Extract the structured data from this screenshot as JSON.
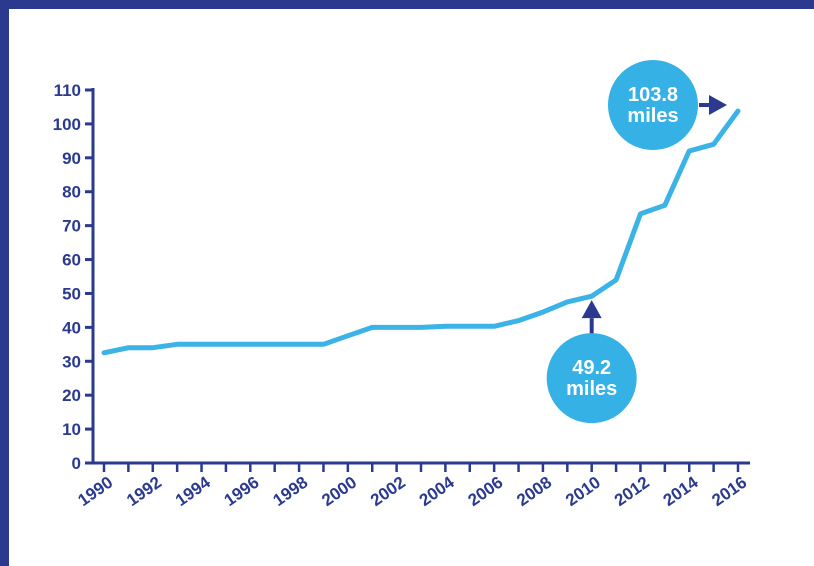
{
  "colors": {
    "frame": "#2b3a8f",
    "axis": "#2b3a8f",
    "line": "#3bb3e6",
    "bubble": "#35b1e5",
    "arrow": "#2b3a8f"
  },
  "chart_data": {
    "type": "line",
    "title": "",
    "xlabel": "",
    "ylabel": "",
    "xlim": [
      1990,
      2016
    ],
    "ylim": [
      0,
      110
    ],
    "yticks": [
      0,
      10,
      20,
      30,
      40,
      50,
      60,
      70,
      80,
      90,
      100,
      110
    ],
    "xtick_labels": [
      "1990",
      "1992",
      "1994",
      "1996",
      "1998",
      "2000",
      "2002",
      "2004",
      "2006",
      "2008",
      "2010",
      "2012",
      "2014",
      "2016"
    ],
    "x": [
      1990,
      1991,
      1992,
      1993,
      1994,
      1995,
      1996,
      1997,
      1998,
      1999,
      2000,
      2001,
      2002,
      2003,
      2004,
      2005,
      2006,
      2007,
      2008,
      2009,
      2010,
      2011,
      2012,
      2013,
      2014,
      2015,
      2016
    ],
    "values": [
      32.5,
      34,
      34,
      35,
      35,
      35,
      35,
      35,
      35,
      35,
      37.5,
      40,
      40,
      40,
      40.3,
      40.3,
      40.3,
      42,
      44.5,
      47.5,
      49.2,
      54,
      73.5,
      76,
      92,
      94,
      103.8
    ],
    "grid": false,
    "legend": "none",
    "annotations": [
      {
        "line1": "49.2",
        "line2": "miles",
        "x": 2010,
        "y": 49.2
      },
      {
        "line1": "103.8",
        "line2": "miles",
        "x": 2016,
        "y": 103.8
      }
    ]
  }
}
